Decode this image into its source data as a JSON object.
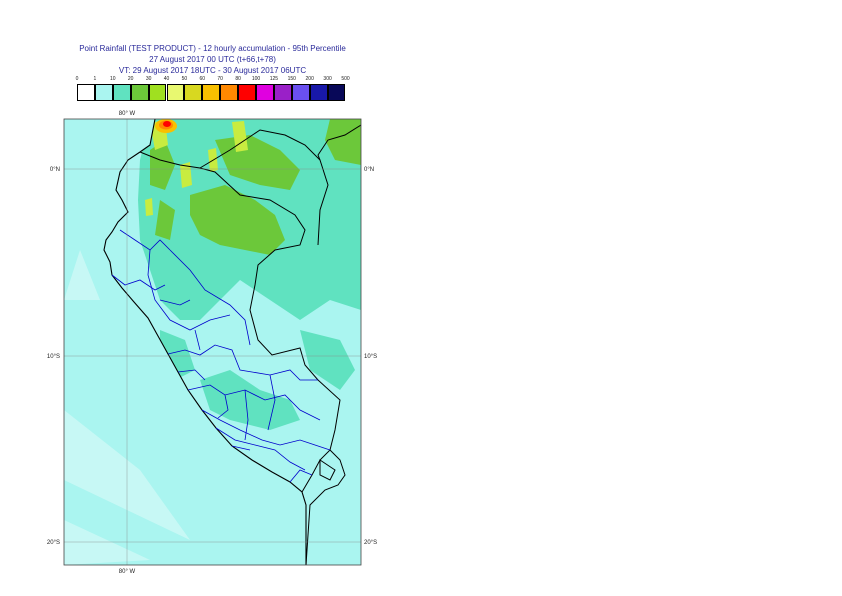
{
  "title": {
    "line1": "Point Rainfall (TEST PRODUCT) - 12 hourly accumulation - 95th Percentile",
    "line2": "27 August 2017 00 UTC (t+66,t+78)",
    "line3": "VT: 29 August 2017 18UTC - 30 August 2017 06UTC"
  },
  "legend": {
    "thresholds": [
      "0",
      "1",
      "10",
      "20",
      "30",
      "40",
      "50",
      "60",
      "70",
      "80",
      "100",
      "125",
      "150",
      "200",
      "300",
      "500"
    ],
    "colors": [
      "#ffffff",
      "#aaf5f0",
      "#60e2c0",
      "#6cc83a",
      "#a0e020",
      "#e8f870",
      "#d8d820",
      "#f8c000",
      "#ff8800",
      "#ff0000",
      "#e000e0",
      "#9a20c8",
      "#6a50f0",
      "#1818a8",
      "#080858"
    ]
  },
  "map": {
    "lon_top_label": "80° W",
    "lon_bottom_label": "80° W",
    "lat_labels": [
      {
        "left": "0°N",
        "right": "0°N"
      },
      {
        "left": "10°S",
        "right": "10°S"
      },
      {
        "left": "20°S",
        "right": "20°S"
      }
    ]
  }
}
